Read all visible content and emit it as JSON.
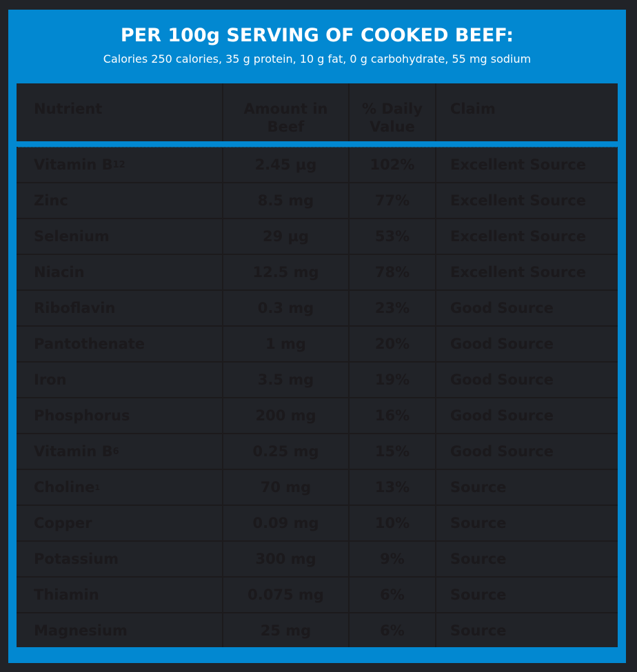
{
  "header": {
    "title": "PER 100g SERVING OF COOKED BEEF:",
    "subtitle": "Calories 250 calories, 35 g protein, 10 g fat, 0 g carbohydrate, 55 mg sodium"
  },
  "colors": {
    "accent": "#0288d1",
    "background": "#212328",
    "text_dark": "#1b191c",
    "title_text": "#ffffff"
  },
  "table": {
    "columns": [
      "Nutrient",
      "Amount in Beef",
      "% Daily Value",
      "Claim"
    ],
    "rows": [
      {
        "nutrient": "Vitamin B",
        "sub": "12",
        "sup": "",
        "amount": "2.45 µg",
        "dv": "102%",
        "claim": "Excellent Source"
      },
      {
        "nutrient": "Zinc",
        "sub": "",
        "sup": "",
        "amount": "8.5 mg",
        "dv": "77%",
        "claim": "Excellent Source"
      },
      {
        "nutrient": "Selenium",
        "sub": "",
        "sup": "",
        "amount": "29 µg",
        "dv": "53%",
        "claim": "Excellent Source"
      },
      {
        "nutrient": "Niacin",
        "sub": "",
        "sup": "",
        "amount": "12.5 mg",
        "dv": "78%",
        "claim": "Excellent Source"
      },
      {
        "nutrient": "Riboflavin",
        "sub": "",
        "sup": "",
        "amount": "0.3 mg",
        "dv": "23%",
        "claim": "Good Source"
      },
      {
        "nutrient": "Pantothenate",
        "sub": "",
        "sup": "",
        "amount": "1 mg",
        "dv": "20%",
        "claim": "Good Source"
      },
      {
        "nutrient": "Iron",
        "sub": "",
        "sup": "",
        "amount": "3.5 mg",
        "dv": "19%",
        "claim": "Good Source"
      },
      {
        "nutrient": "Phosphorus",
        "sub": "",
        "sup": "",
        "amount": "200 mg",
        "dv": "16%",
        "claim": "Good Source"
      },
      {
        "nutrient": "Vitamin B",
        "sub": "6",
        "sup": "",
        "amount": "0.25 mg",
        "dv": "15%",
        "claim": "Good Source"
      },
      {
        "nutrient": "Choline",
        "sub": "",
        "sup": "1",
        "amount": "70 mg",
        "dv": "13%",
        "claim": "Source"
      },
      {
        "nutrient": "Copper",
        "sub": "",
        "sup": "",
        "amount": "0.09 mg",
        "dv": "10%",
        "claim": "Source"
      },
      {
        "nutrient": "Potassium",
        "sub": "",
        "sup": "",
        "amount": "300 mg",
        "dv": "9%",
        "claim": "Source"
      },
      {
        "nutrient": "Thiamin",
        "sub": "",
        "sup": "",
        "amount": "0.075 mg",
        "dv": "6%",
        "claim": "Source"
      },
      {
        "nutrient": "Magnesium",
        "sub": "",
        "sup": "",
        "amount": "25 mg",
        "dv": "6%",
        "claim": "Source"
      }
    ]
  }
}
